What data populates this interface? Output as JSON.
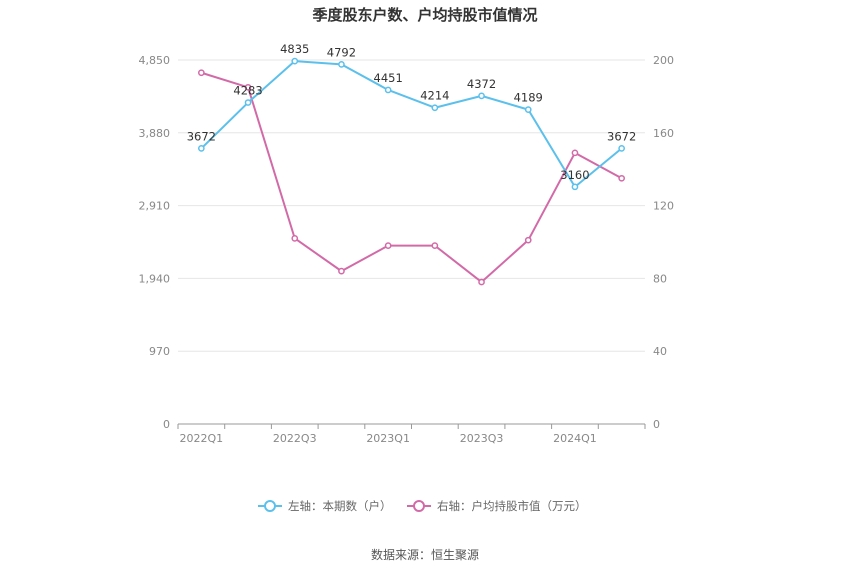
{
  "chart_data": {
    "type": "line",
    "title": "季度股东户数、户均持股市值情况",
    "categories": [
      "2022Q1",
      "2022Q2",
      "2022Q3",
      "2022Q4",
      "2023Q1",
      "2023Q2",
      "2023Q3",
      "2023Q4",
      "2024Q1",
      "2024Q2"
    ],
    "x_tick_labels": [
      "2022Q1",
      "2022Q3",
      "2023Q1",
      "2023Q3",
      "2024Q1"
    ],
    "left_axis": {
      "ticks": [
        "0",
        "970",
        "1,940",
        "2,910",
        "3,880",
        "4,850"
      ],
      "ylim": [
        0,
        4850
      ]
    },
    "right_axis": {
      "ticks": [
        "0",
        "40",
        "80",
        "120",
        "160",
        "200"
      ],
      "ylim": [
        0,
        200
      ]
    },
    "series": [
      {
        "name": "左轴：本期数（户）",
        "axis": "left",
        "color": "#5bc0eb",
        "values": [
          3672,
          4283,
          4835,
          4792,
          4451,
          4214,
          4372,
          4189,
          3160,
          3672
        ],
        "labels": [
          "3672",
          "4283",
          "4835",
          "4792",
          "4451",
          "4214",
          "4372",
          "4189",
          "3160",
          "3672"
        ]
      },
      {
        "name": "右轴：户均持股市值（万元）",
        "axis": "right",
        "color": "#d36aa8",
        "values": [
          193,
          185,
          102,
          84,
          98,
          98,
          78,
          101,
          149,
          135
        ]
      }
    ],
    "legend_position": "bottom",
    "grid": true
  },
  "source": "数据来源：恒生聚源"
}
